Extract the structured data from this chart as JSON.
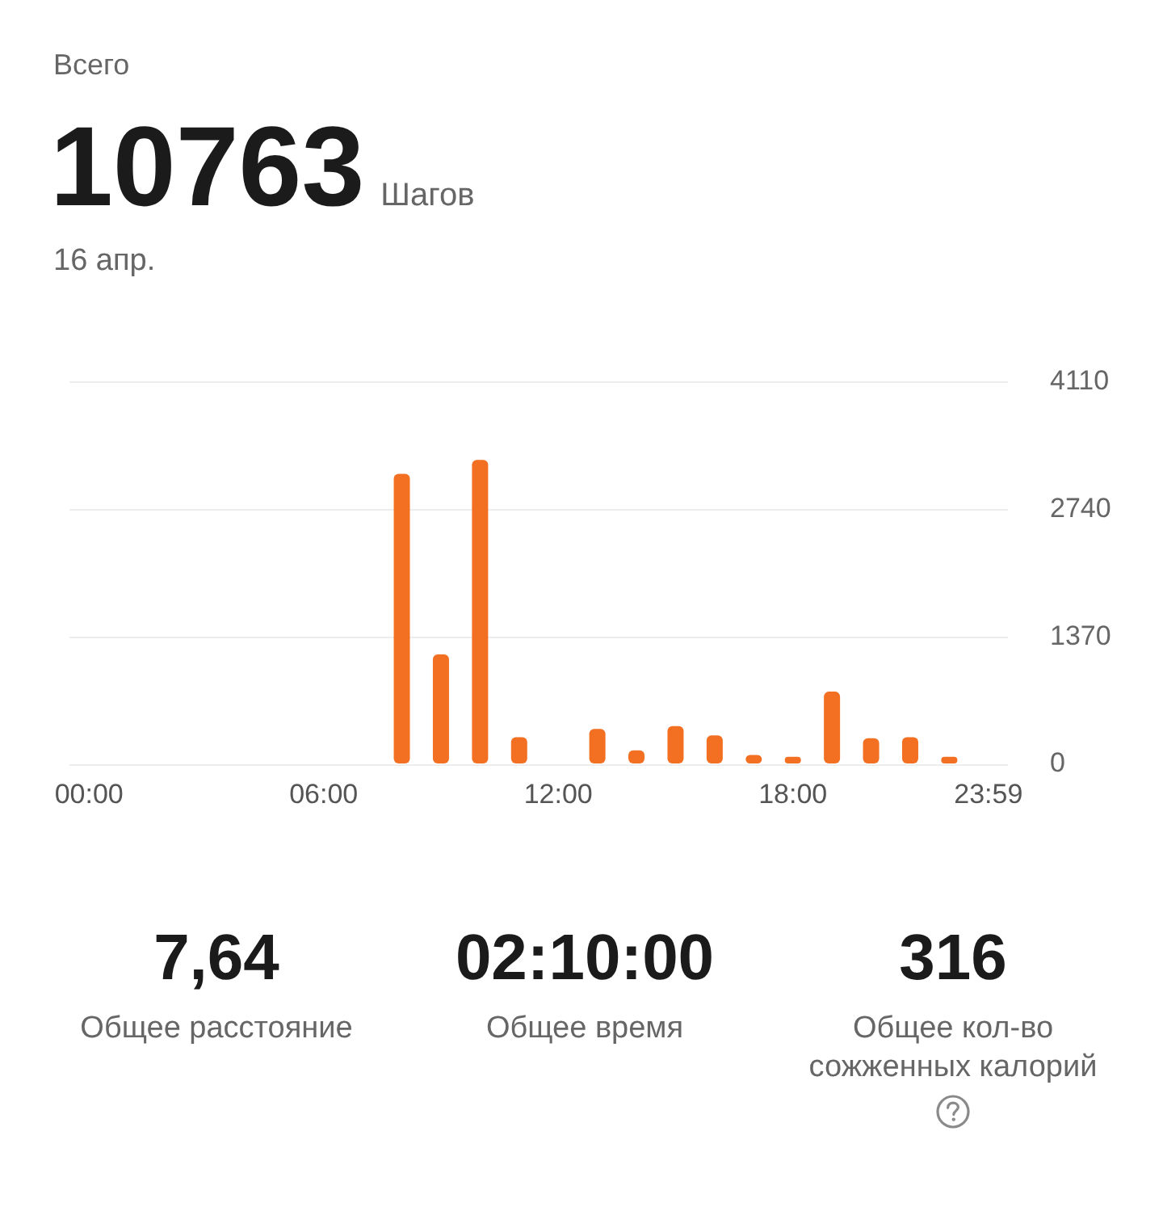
{
  "chart_data": {
    "type": "bar",
    "title": "Всего",
    "annotations": [
      "10763",
      "Шагов",
      "16 апр.",
      "7,64",
      "Общее расстояние",
      "02:10:00",
      "Общее время",
      "316",
      "Общее кол-во сожженных калорий"
    ],
    "categories": [
      "00:00",
      null,
      null,
      null,
      null,
      null,
      "06:00",
      null,
      null,
      null,
      null,
      null,
      "12:00",
      null,
      null,
      null,
      null,
      null,
      "18:00",
      null,
      null,
      null,
      null,
      "23:59"
    ],
    "values": [
      0,
      0,
      0,
      0,
      0,
      0,
      0,
      0,
      3120,
      1180,
      3270,
      290,
      0,
      380,
      150,
      410,
      310,
      100,
      80,
      780,
      280,
      290,
      80,
      0
    ],
    "color": "#f36f21",
    "ylim": [
      0,
      4110
    ],
    "yticks": [
      0,
      1370,
      2740,
      4110
    ],
    "grid": "y"
  }
}
